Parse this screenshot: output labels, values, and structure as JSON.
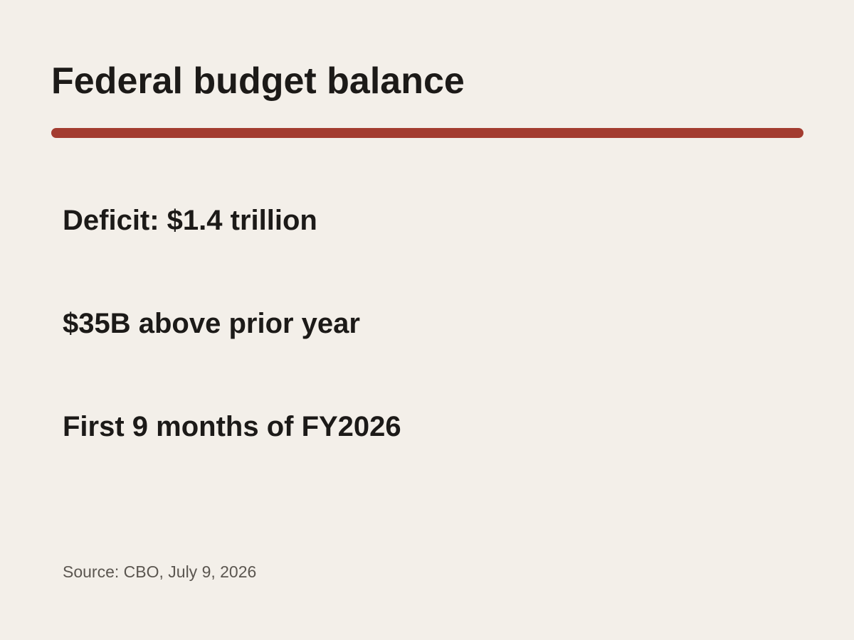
{
  "title": "Federal budget balance",
  "accent_color": "#a33c30",
  "stats": [
    "Deficit: $1.4 trillion",
    "$35B above prior year",
    "First 9 months of FY2026"
  ],
  "source": "Source: CBO, July 9, 2026"
}
